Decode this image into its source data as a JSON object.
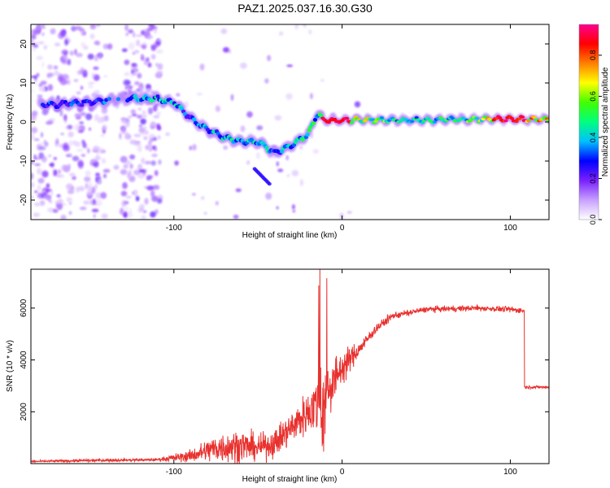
{
  "title": "PAZ1.2025.037.16.30.G30",
  "chart_data": [
    {
      "type": "heatmap",
      "xlabel": "Height of straight line (km)",
      "ylabel": "Frequency (Hz)",
      "xlim": [
        -185,
        123
      ],
      "ylim": [
        -25,
        25
      ],
      "xticks": [
        -100,
        0,
        100
      ],
      "yticks": [
        -20,
        -10,
        0,
        10,
        20
      ],
      "colorbar": {
        "label": "Normalized spectral amplitude",
        "range": [
          0,
          0.95
        ],
        "ticks": [
          0.0,
          0.2,
          0.4,
          0.6,
          0.8
        ],
        "tick_labels": [
          "0.0",
          "0.2",
          "0.4",
          "0.6",
          "0.8"
        ],
        "colormap": [
          "#ffffff",
          "#c8a0ff",
          "#7a20ff",
          "#0000ff",
          "#00c0ff",
          "#00ff80",
          "#40ff00",
          "#ffff00",
          "#ff8000",
          "#ff0000",
          "#ff0090"
        ]
      },
      "ridge": {
        "description_values_x_km": [
          -170,
          -150,
          -130,
          -110,
          -100,
          -90,
          -80,
          -70,
          -60,
          -50,
          -40,
          -30,
          -20,
          -15,
          -10,
          0,
          20,
          50,
          80,
          100,
          120
        ],
        "frequency_hz": [
          4.5,
          5,
          6,
          6,
          5,
          1,
          -2,
          -4,
          -5,
          -5,
          -8,
          -6,
          -3,
          2,
          0.5,
          0.5,
          0.5,
          0.5,
          0.7,
          0.8,
          0.6
        ],
        "amplitude": [
          0.35,
          0.3,
          0.4,
          0.45,
          0.45,
          0.35,
          0.4,
          0.45,
          0.45,
          0.5,
          0.4,
          0.45,
          0.5,
          0.5,
          0.9,
          0.9,
          0.6,
          0.5,
          0.6,
          0.9,
          0.8
        ]
      }
    },
    {
      "type": "line",
      "xlabel": "Height of straight line (km)",
      "ylabel": "SNR (10 * v/v)",
      "xlim": [
        -185,
        123
      ],
      "ylim": [
        0,
        7500
      ],
      "xticks": [
        -100,
        0,
        100
      ],
      "yticks": [
        2000,
        4000,
        6000
      ],
      "color": "#e8312e",
      "envelope": {
        "x_km": [
          -185,
          -150,
          -110,
          -90,
          -75,
          -60,
          -50,
          -40,
          -30,
          -20,
          -15,
          -12,
          -10,
          -5,
          0,
          10,
          20,
          30,
          50,
          80,
          100,
          108,
          109,
          123
        ],
        "baseline_snr": [
          80,
          120,
          150,
          300,
          600,
          700,
          600,
          800,
          1400,
          2000,
          2300,
          2600,
          2700,
          3200,
          3700,
          4400,
          5200,
          5700,
          5950,
          6000,
          5950,
          5900,
          3000,
          2950
        ],
        "noise_amplitude": [
          40,
          60,
          60,
          250,
          600,
          700,
          500,
          600,
          700,
          900,
          1200,
          2500,
          1500,
          900,
          700,
          300,
          200,
          150,
          120,
          120,
          120,
          120,
          60,
          60
        ]
      }
    }
  ]
}
